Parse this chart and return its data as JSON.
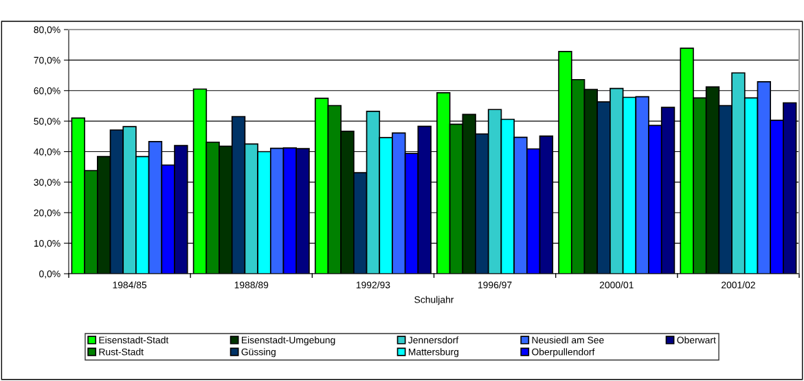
{
  "chart_data": {
    "type": "bar",
    "xlabel": "Schuljahr",
    "categories": [
      "1984/85",
      "1988/89",
      "1992/93",
      "1996/97",
      "2000/01",
      "2001/02"
    ],
    "series": [
      {
        "name": "Eisenstadt-Stadt",
        "color": "#00ff00",
        "values": [
          51.0,
          60.5,
          57.5,
          59.3,
          72.8,
          73.9
        ]
      },
      {
        "name": "Rust-Stadt",
        "color": "#008000",
        "values": [
          33.8,
          43.1,
          55.1,
          49.0,
          63.6,
          57.6
        ]
      },
      {
        "name": "Eisenstadt-Umgebung",
        "color": "#003300",
        "values": [
          38.4,
          41.8,
          46.7,
          52.2,
          60.4,
          61.2
        ]
      },
      {
        "name": "Güssing",
        "color": "#003366",
        "values": [
          47.1,
          51.5,
          33.1,
          45.8,
          56.3,
          55.1
        ]
      },
      {
        "name": "Jennersdorf",
        "color": "#33cccc",
        "values": [
          48.2,
          42.5,
          53.2,
          53.8,
          60.7,
          65.8
        ]
      },
      {
        "name": "Mattersburg",
        "color": "#00ffff",
        "values": [
          38.4,
          40.0,
          44.6,
          50.6,
          57.8,
          57.6
        ]
      },
      {
        "name": "Neusiedl am See",
        "color": "#3366ff",
        "values": [
          43.3,
          41.1,
          46.1,
          44.7,
          58.0,
          62.9
        ]
      },
      {
        "name": "Oberpullendorf",
        "color": "#0000ff",
        "values": [
          35.6,
          41.2,
          39.4,
          40.9,
          48.6,
          50.3
        ]
      },
      {
        "name": "Oberwart",
        "color": "#000080",
        "values": [
          42.0,
          41.0,
          48.3,
          45.1,
          54.5,
          56.0
        ]
      }
    ],
    "ylim": [
      0,
      80
    ],
    "yticks": [
      {
        "value": 0,
        "label": "0,0%"
      },
      {
        "value": 10,
        "label": "10,0%"
      },
      {
        "value": 20,
        "label": "20,0%"
      },
      {
        "value": 30,
        "label": "30,0%"
      },
      {
        "value": 40,
        "label": "40,0%"
      },
      {
        "value": 50,
        "label": "50,0%"
      },
      {
        "value": 60,
        "label": "60,0%"
      },
      {
        "value": 70,
        "label": "70,0%"
      },
      {
        "value": 80,
        "label": "80,0%"
      }
    ],
    "grid": "y",
    "legend": "bottom"
  }
}
